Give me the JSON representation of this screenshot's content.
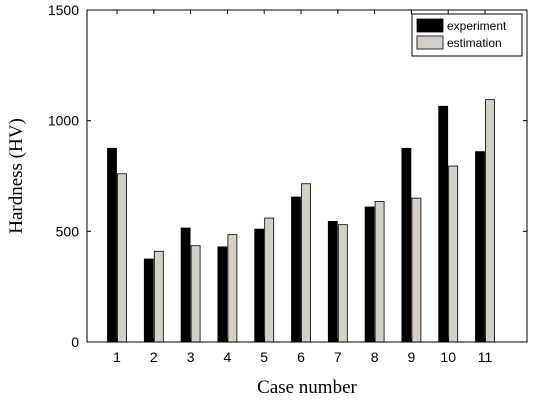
{
  "chart_data": {
    "type": "bar",
    "xlabel": "Case number",
    "ylabel": "Hardness (HV)",
    "categories": [
      "1",
      "2",
      "3",
      "4",
      "5",
      "6",
      "7",
      "8",
      "9",
      "10",
      "11"
    ],
    "series": [
      {
        "name": "experiment",
        "color": "#000000",
        "values": [
          875,
          375,
          515,
          430,
          510,
          655,
          545,
          610,
          875,
          1065,
          860
        ]
      },
      {
        "name": "estimation",
        "color": "#d4d0c8",
        "values": [
          760,
          410,
          435,
          485,
          560,
          715,
          530,
          635,
          650,
          795,
          1095
        ]
      }
    ],
    "ylim": [
      0,
      1500
    ],
    "yticks": [
      "0",
      "500",
      "1000",
      "1500"
    ],
    "grid": false,
    "legend_position": "top-right"
  }
}
